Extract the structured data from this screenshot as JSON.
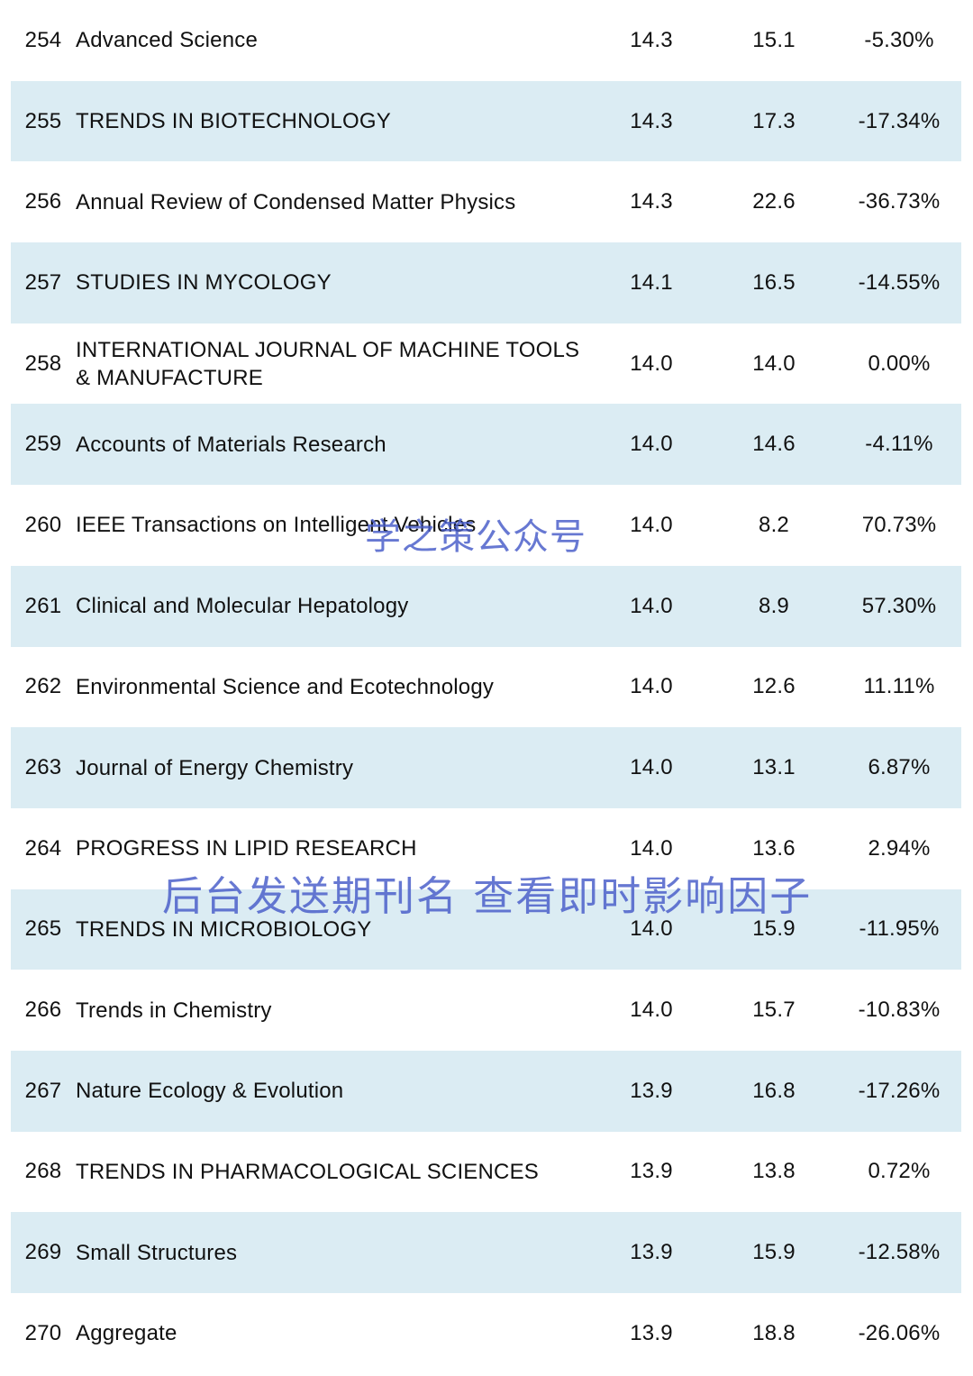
{
  "rows": [
    {
      "rank": "254",
      "name": "Advanced Science",
      "v1": "14.3",
      "v2": "15.1",
      "pct": "-5.30%"
    },
    {
      "rank": "255",
      "name": "TRENDS IN BIOTECHNOLOGY",
      "v1": "14.3",
      "v2": "17.3",
      "pct": "-17.34%"
    },
    {
      "rank": "256",
      "name": "Annual Review of Condensed Matter Physics",
      "v1": "14.3",
      "v2": "22.6",
      "pct": "-36.73%"
    },
    {
      "rank": "257",
      "name": "STUDIES IN MYCOLOGY",
      "v1": "14.1",
      "v2": "16.5",
      "pct": "-14.55%"
    },
    {
      "rank": "258",
      "name": "INTERNATIONAL JOURNAL OF MACHINE TOOLS & MANUFACTURE",
      "v1": "14.0",
      "v2": "14.0",
      "pct": "0.00%"
    },
    {
      "rank": "259",
      "name": "Accounts of Materials Research",
      "v1": "14.0",
      "v2": "14.6",
      "pct": "-4.11%"
    },
    {
      "rank": "260",
      "name": "IEEE Transactions on Intelligent Vehicles",
      "v1": "14.0",
      "v2": "8.2",
      "pct": "70.73%"
    },
    {
      "rank": "261",
      "name": "Clinical and Molecular Hepatology",
      "v1": "14.0",
      "v2": "8.9",
      "pct": "57.30%"
    },
    {
      "rank": "262",
      "name": "Environmental Science and Ecotechnology",
      "v1": "14.0",
      "v2": "12.6",
      "pct": "11.11%"
    },
    {
      "rank": "263",
      "name": "Journal of Energy Chemistry",
      "v1": "14.0",
      "v2": "13.1",
      "pct": "6.87%"
    },
    {
      "rank": "264",
      "name": "PROGRESS IN LIPID RESEARCH",
      "v1": "14.0",
      "v2": "13.6",
      "pct": "2.94%"
    },
    {
      "rank": "265",
      "name": "TRENDS IN MICROBIOLOGY",
      "v1": "14.0",
      "v2": "15.9",
      "pct": "-11.95%"
    },
    {
      "rank": "266",
      "name": "Trends in Chemistry",
      "v1": "14.0",
      "v2": "15.7",
      "pct": "-10.83%"
    },
    {
      "rank": "267",
      "name": "Nature Ecology & Evolution",
      "v1": "13.9",
      "v2": "16.8",
      "pct": "-17.26%"
    },
    {
      "rank": "268",
      "name": "TRENDS IN PHARMACOLOGICAL SCIENCES",
      "v1": "13.9",
      "v2": "13.8",
      "pct": "0.72%"
    },
    {
      "rank": "269",
      "name": "Small Structures",
      "v1": "13.9",
      "v2": "15.9",
      "pct": "-12.58%"
    },
    {
      "rank": "270",
      "name": "Aggregate",
      "v1": "13.9",
      "v2": "18.8",
      "pct": "-26.06%"
    }
  ],
  "watermarks": {
    "account": "学之策公众号",
    "promo": "后台发送期刊名 查看即时影响因子"
  },
  "colors": {
    "row_shade": "#dbecf3",
    "watermark": "#465ac8"
  }
}
